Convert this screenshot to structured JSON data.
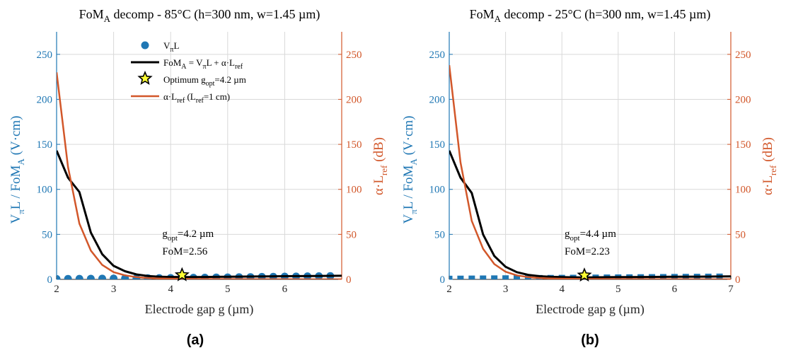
{
  "colors": {
    "blue": "#1f77b4",
    "orange": "#d2572a",
    "black": "#000000",
    "grid": "#d9d9d9",
    "star_fill": "#ffff33"
  },
  "chart_data": [
    {
      "type": "line",
      "panel_label": "(a)",
      "title_main": "FoM",
      "title_sub": "A",
      "title_rest": " decomp  -  85°C   (h=300 nm, w=1.45 µm)",
      "xlabel": "Electrode gap g (µm)",
      "ylabel_left_parts": [
        "V",
        "π",
        "L  /  FoM",
        "A",
        "   (V·cm)"
      ],
      "ylabel_right_parts": [
        "α·L",
        "ref",
        "  (dB)"
      ],
      "xlim": [
        2,
        7
      ],
      "ylim": [
        0,
        275
      ],
      "ylim_right": [
        0,
        275
      ],
      "xticks": [
        "2",
        "3",
        "4",
        "5",
        "6"
      ],
      "yticks_left": [
        "0",
        "50",
        "100",
        "150",
        "200",
        "250"
      ],
      "yticks_right": [
        "0",
        "50",
        "100",
        "150",
        "200",
        "250"
      ],
      "grid": true,
      "legend_position": "top-left",
      "legend": [
        {
          "kind": "dot",
          "text": "V",
          "sub": "π",
          "rest": "L"
        },
        {
          "kind": "line-black",
          "text": "FoM",
          "sub": "A",
          "rest": " = V",
          "sub2": "π",
          "rest2": "L + α·L",
          "sub3": "ref"
        },
        {
          "kind": "star",
          "text": "Optimum  g",
          "sub": "opt",
          "rest": "=4.2 µm"
        },
        {
          "kind": "line-orange",
          "text": "α·L",
          "sub": "ref",
          "rest": "  (L",
          "sub2": "ref",
          "rest2": "=1 cm)"
        }
      ],
      "annotation": {
        "line1_main": "g",
        "line1_sub": "opt",
        "line1_rest": "=4.2 µm",
        "line2": "FoM=2.56",
        "x": 4.2,
        "y": 2.56
      },
      "marker_style": "circle",
      "series": [
        {
          "name": "VπL",
          "style": "markers",
          "x": [
            2.0,
            2.2,
            2.4,
            2.6,
            2.8,
            3.0,
            3.2,
            3.4,
            3.6,
            3.8,
            4.0,
            4.2,
            4.4,
            4.6,
            4.8,
            5.0,
            5.2,
            5.4,
            5.6,
            5.8,
            6.0,
            6.2,
            6.4,
            6.6,
            6.8
          ],
          "y": [
            0.5,
            0.6,
            0.7,
            0.8,
            0.9,
            1.0,
            1.1,
            1.2,
            1.4,
            1.5,
            1.6,
            1.8,
            1.9,
            2.0,
            2.2,
            2.3,
            2.5,
            2.6,
            2.8,
            2.9,
            3.1,
            3.2,
            3.4,
            3.5,
            3.7
          ]
        },
        {
          "name": "FoMA",
          "style": "line-black",
          "x": [
            2.0,
            2.2,
            2.4,
            2.6,
            2.8,
            3.0,
            3.2,
            3.4,
            3.6,
            3.8,
            4.0,
            4.2,
            4.4,
            4.6,
            4.8,
            5.0,
            5.5,
            6.0,
            6.5,
            7.0
          ],
          "y": [
            143,
            113,
            97,
            52,
            28,
            15,
            9,
            5.5,
            3.8,
            3.0,
            2.7,
            2.56,
            2.6,
            2.7,
            2.8,
            3.0,
            3.2,
            3.5,
            3.8,
            4.0
          ]
        },
        {
          "name": "αLref",
          "style": "line-orange",
          "x": [
            2.0,
            2.2,
            2.4,
            2.6,
            2.8,
            3.0,
            3.2,
            3.4,
            3.6,
            3.8,
            4.0,
            4.5,
            5.0,
            5.5,
            6.0,
            6.5,
            7.0
          ],
          "y": [
            230,
            125,
            62,
            32,
            16,
            8,
            4.5,
            2.5,
            1.5,
            1.0,
            0.7,
            0.4,
            0.3,
            0.2,
            0.15,
            0.1,
            0.1
          ]
        }
      ]
    },
    {
      "type": "line",
      "panel_label": "(b)",
      "title_main": "FoM",
      "title_sub": "A",
      "title_rest": " decomp  -  25°C   (h=300 nm, w=1.45 µm)",
      "xlabel": "Electrode gap g (µm)",
      "ylabel_left_parts": [
        "V",
        "π",
        "L  /  FoM",
        "A",
        "   (V·cm)"
      ],
      "ylabel_right_parts": [
        "α·L",
        "ref",
        "  (dB)"
      ],
      "xlim": [
        2,
        7
      ],
      "ylim": [
        0,
        275
      ],
      "ylim_right": [
        0,
        275
      ],
      "xticks": [
        "2",
        "3",
        "4",
        "5",
        "6",
        "7"
      ],
      "yticks_left": [
        "0",
        "50",
        "100",
        "150",
        "200",
        "250"
      ],
      "yticks_right": [
        "0",
        "50",
        "100",
        "150",
        "200",
        "250"
      ],
      "grid": true,
      "annotation": {
        "line1_main": "g",
        "line1_sub": "opt",
        "line1_rest": "=4.4 µm",
        "line2": "FoM=2.23",
        "x": 4.4,
        "y": 2.23
      },
      "marker_style": "square",
      "series": [
        {
          "name": "VπL",
          "style": "markers",
          "x": [
            2.0,
            2.2,
            2.4,
            2.6,
            2.8,
            3.0,
            3.2,
            3.4,
            3.6,
            3.8,
            4.0,
            4.2,
            4.4,
            4.6,
            4.8,
            5.0,
            5.2,
            5.4,
            5.6,
            5.8,
            6.0,
            6.2,
            6.4,
            6.6,
            6.8
          ],
          "y": [
            0.5,
            0.6,
            0.7,
            0.8,
            0.9,
            1.0,
            1.1,
            1.2,
            1.3,
            1.4,
            1.5,
            1.6,
            1.7,
            1.8,
            1.9,
            2.0,
            2.1,
            2.2,
            2.3,
            2.4,
            2.5,
            2.6,
            2.7,
            2.8,
            2.9
          ]
        },
        {
          "name": "FoMA",
          "style": "line-black",
          "x": [
            2.0,
            2.2,
            2.4,
            2.6,
            2.8,
            3.0,
            3.2,
            3.4,
            3.6,
            3.8,
            4.0,
            4.2,
            4.4,
            4.6,
            4.8,
            5.0,
            5.5,
            6.0,
            6.5,
            7.0
          ],
          "y": [
            143,
            113,
            96,
            50,
            26,
            14,
            8,
            5,
            3.5,
            2.8,
            2.5,
            2.3,
            2.23,
            2.3,
            2.4,
            2.5,
            2.7,
            2.9,
            3.1,
            3.3
          ]
        },
        {
          "name": "αLref",
          "style": "line-orange",
          "x": [
            2.0,
            2.2,
            2.4,
            2.6,
            2.8,
            3.0,
            3.2,
            3.4,
            3.6,
            3.8,
            4.0,
            4.5,
            5.0,
            5.5,
            6.0,
            6.5,
            7.0
          ],
          "y": [
            238,
            130,
            65,
            34,
            17,
            8.5,
            4.5,
            2.5,
            1.5,
            1.0,
            0.7,
            0.4,
            0.3,
            0.2,
            0.15,
            0.1,
            0.1
          ]
        }
      ]
    }
  ]
}
